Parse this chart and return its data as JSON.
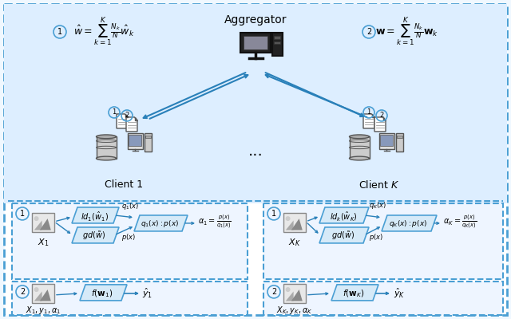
{
  "bg_color": "#f0f8ff",
  "border_color": "#4a9fd4",
  "box_color": "#d6eaf8",
  "box_edge": "#4a9fd4",
  "arrow_color": "#2980b9",
  "text_color": "#000000",
  "title": "Aggregator",
  "eq1": "$\\hat{w} = \\sum_{k=1}^{K} \\frac{N_k}{N} \\hat{w}_k$",
  "eq2": "$\\mathbf{w} = \\sum_{k=1}^{K} \\frac{N_k}{N} \\mathbf{w}_k$",
  "client1": "Client 1",
  "clientK": "Client $K$",
  "dots": "...",
  "fig_width": 6.4,
  "fig_height": 4.0,
  "dpi": 100
}
